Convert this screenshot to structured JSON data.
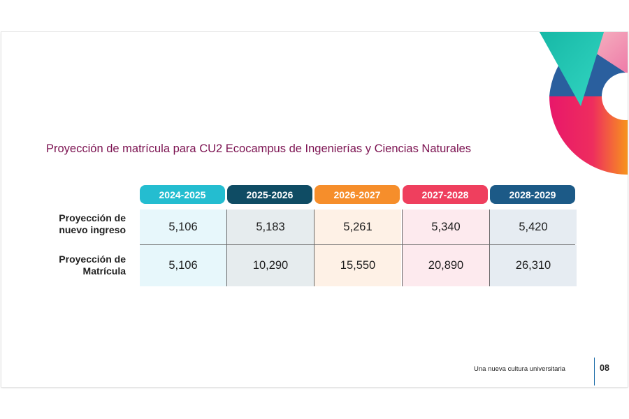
{
  "title": "Proyección de matrícula para CU2 Ecocampus de Ingenierías y Ciencias Naturales",
  "table": {
    "headers": [
      "2024-2025",
      "2025-2026",
      "2026-2027",
      "2027-2028",
      "2028-2029"
    ],
    "header_colors": [
      "#24bdd0",
      "#0f4c64",
      "#f68e2b",
      "#ef3f5e",
      "#1c5a87"
    ],
    "cell_colors": [
      "#e7f7fb",
      "#e6ecee",
      "#fef1e6",
      "#fdeaee",
      "#e6ecf2"
    ],
    "rows": [
      {
        "label_line1": "Proyección de",
        "label_line2": "nuevo ingreso",
        "values": [
          "5,106",
          "5,183",
          "5,261",
          "5,340",
          "5,420"
        ]
      },
      {
        "label_line1": "Proyección de",
        "label_line2": "Matrícula",
        "values": [
          "5,106",
          "10,290",
          "15,550",
          "20,890",
          "26,310"
        ]
      }
    ]
  },
  "footer": {
    "tagline": "Una nueva cultura universitaria",
    "page_number": "08"
  }
}
